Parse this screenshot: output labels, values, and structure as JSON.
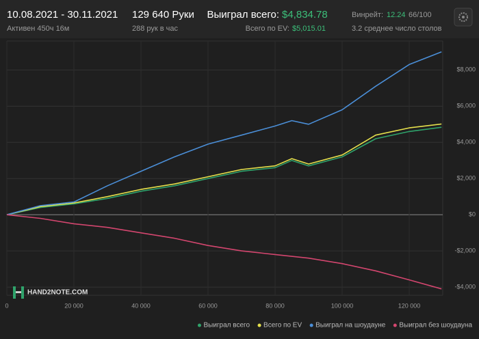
{
  "header": {
    "period": "10.08.2021 - 30.11.2021",
    "active": "Активен 450ч 16м",
    "hands": "129 640 Руки",
    "hands_per_hour": "288 рук в час",
    "won_label": "Выиграл всего:",
    "won_value": "$4,834.78",
    "ev_label": "Всего по EV:",
    "ev_value": "$5,015.01",
    "winrate_label": "Винрейт:",
    "winrate_value": "12.24",
    "winrate_unit": "66/100",
    "tables": "3.2 среднее число столов",
    "watermark": "HAND2NOTE.COM"
  },
  "chart_data": {
    "type": "line",
    "x": [
      0,
      10000,
      20000,
      30000,
      40000,
      50000,
      60000,
      70000,
      80000,
      85000,
      90000,
      100000,
      110000,
      120000,
      129640
    ],
    "series": [
      {
        "name": "Выиграл всего",
        "color": "#2fa36b",
        "values": [
          0,
          400,
          600,
          900,
          1300,
          1600,
          2000,
          2400,
          2600,
          3000,
          2700,
          3200,
          4200,
          4600,
          4835
        ]
      },
      {
        "name": "Всего по EV",
        "color": "#e6e14c",
        "values": [
          0,
          450,
          650,
          1000,
          1400,
          1700,
          2100,
          2500,
          2700,
          3100,
          2800,
          3300,
          4400,
          4800,
          5015
        ]
      },
      {
        "name": "Выиграл на шоудауне",
        "color": "#4b8fd8",
        "values": [
          0,
          500,
          700,
          1600,
          2400,
          3200,
          3900,
          4400,
          4900,
          5200,
          5000,
          5800,
          7100,
          8300,
          9000
        ]
      },
      {
        "name": "Выиграл без шоудауна",
        "color": "#d4466f",
        "values": [
          0,
          -200,
          -500,
          -700,
          -1000,
          -1300,
          -1700,
          -2000,
          -2200,
          -2300,
          -2400,
          -2700,
          -3100,
          -3600,
          -4100
        ]
      }
    ],
    "xlim": [
      0,
      130000
    ],
    "ylim": [
      -4450,
      9600
    ],
    "xticks": [
      0,
      {
        "value": 20000,
        "label": "20 000"
      },
      {
        "value": 40000,
        "label": "40 000"
      },
      {
        "value": 60000,
        "label": "60 000"
      },
      {
        "value": 80000,
        "label": "80 000"
      },
      {
        "value": 100000,
        "label": "100 000"
      },
      {
        "value": 120000,
        "label": "120 000"
      }
    ],
    "yticks": [
      {
        "value": -4000,
        "label": "-$4,000"
      },
      {
        "value": -2000,
        "label": "-$2,000"
      },
      {
        "value": 0,
        "label": "$0"
      },
      {
        "value": 2000,
        "label": "$2,000"
      },
      {
        "value": 4000,
        "label": "$4,000"
      },
      {
        "value": 6000,
        "label": "$6,000"
      },
      {
        "value": 8000,
        "label": "$8,000"
      }
    ],
    "grid": true
  }
}
